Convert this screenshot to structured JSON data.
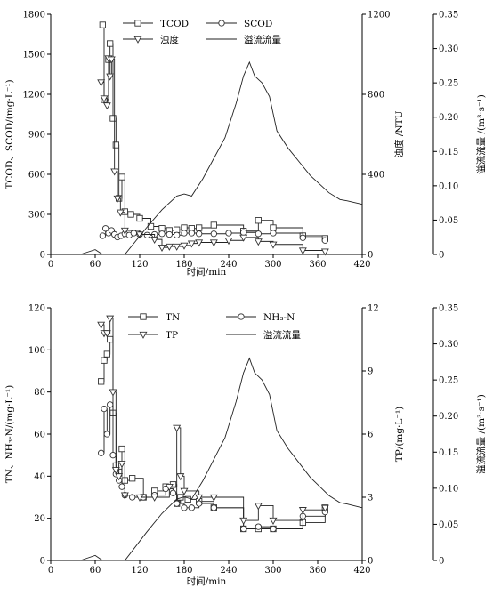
{
  "chart_data": [
    {
      "type": "line",
      "xlabel": "时间/min",
      "ylabel_left": "TCOD、SCOD/(mg·L⁻¹)",
      "ylabel_right1": "浊度 /NTU",
      "ylabel_right2": "溢流流量 /(m³·s⁻¹)",
      "xlim": [
        0,
        420
      ],
      "xticks": [
        "0",
        "60",
        "120",
        "180",
        "240",
        "300",
        "360",
        "420"
      ],
      "ylim_left": [
        0,
        1800
      ],
      "yticks_left": [
        "0",
        "300",
        "600",
        "900",
        "1200",
        "1500",
        "1800"
      ],
      "ylim_right1": [
        0,
        1200
      ],
      "yticks_right1": [
        "0",
        "400",
        "800",
        "1200"
      ],
      "ylim_right2": [
        0,
        0.35
      ],
      "yticks_right2": [
        "0",
        "0.05",
        "0.10",
        "0.15",
        "0.20",
        "0.25",
        "0.30",
        "0.35"
      ],
      "legend_position": "top",
      "series": [
        {
          "name": "TCOD",
          "axis": "left",
          "marker": "square",
          "style": "step",
          "x": [
            70,
            72,
            78,
            80,
            84,
            88,
            92,
            96,
            100,
            108,
            120,
            135,
            150,
            160,
            170,
            180,
            190,
            200,
            220,
            260,
            280,
            300,
            340,
            370
          ],
          "y": [
            1720,
            1160,
            1460,
            1580,
            1020,
            820,
            420,
            580,
            320,
            300,
            270,
            210,
            195,
            180,
            185,
            200,
            195,
            200,
            220,
            175,
            255,
            200,
            140,
            120
          ]
        },
        {
          "name": "SCOD",
          "axis": "left",
          "marker": "circle",
          "style": "step",
          "x": [
            70,
            74,
            78,
            82,
            86,
            90,
            95,
            100,
            106,
            112,
            120,
            130,
            140,
            150,
            160,
            170,
            180,
            190,
            200,
            220,
            240,
            260,
            280,
            300,
            340,
            370
          ],
          "y": [
            140,
            195,
            160,
            180,
            150,
            130,
            140,
            155,
            145,
            160,
            150,
            145,
            150,
            155,
            150,
            145,
            160,
            160,
            155,
            155,
            160,
            165,
            155,
            160,
            125,
            105
          ]
        },
        {
          "name": "浊度",
          "axis": "right1",
          "marker": "triangle-down",
          "style": "step",
          "x": [
            68,
            72,
            76,
            78,
            80,
            82,
            86,
            90,
            94,
            100,
            120,
            140,
            150,
            160,
            170,
            180,
            190,
            200,
            220,
            240,
            260,
            280,
            300,
            340,
            370
          ],
          "y": [
            860,
            780,
            745,
            980,
            890,
            975,
            415,
            280,
            210,
            120,
            100,
            75,
            35,
            40,
            40,
            45,
            55,
            60,
            60,
            70,
            85,
            65,
            50,
            20,
            15
          ]
        },
        {
          "name": "溢流流量",
          "axis": "right2",
          "marker": "none",
          "style": "line",
          "x": [
            40,
            60,
            70,
            100,
            130,
            150,
            170,
            180,
            190,
            205,
            220,
            235,
            250,
            260,
            268,
            275,
            285,
            295,
            305,
            320,
            335,
            350,
            365,
            375,
            390,
            400,
            420
          ],
          "y": [
            0,
            0.007,
            0,
            0,
            0.04,
            0.065,
            0.085,
            0.088,
            0.085,
            0.11,
            0.14,
            0.17,
            0.22,
            0.26,
            0.28,
            0.26,
            0.25,
            0.23,
            0.18,
            0.155,
            0.135,
            0.115,
            0.1,
            0.09,
            0.08,
            0.078,
            0.073
          ]
        }
      ]
    },
    {
      "type": "line",
      "xlabel": "时间/min",
      "ylabel_left": "TN、NH₃-N/(mg·L⁻¹)",
      "ylabel_right1": "TP/(mg·L⁻¹)",
      "ylabel_right2": "溢流流量 /(m³·s⁻¹)",
      "xlim": [
        0,
        420
      ],
      "xticks": [
        "0",
        "60",
        "120",
        "180",
        "240",
        "300",
        "360",
        "420"
      ],
      "ylim_left": [
        0,
        120
      ],
      "yticks_left": [
        "0",
        "20",
        "40",
        "60",
        "80",
        "100",
        "120"
      ],
      "ylim_right1": [
        0,
        12
      ],
      "yticks_right1": [
        "0",
        "3",
        "6",
        "9",
        "12"
      ],
      "ylim_right2": [
        0,
        0.35
      ],
      "yticks_right2": [
        "0",
        "0.05",
        "0.10",
        "0.15",
        "0.20",
        "0.25",
        "0.30",
        "0.35"
      ],
      "legend_position": "top",
      "series": [
        {
          "name": "TN",
          "axis": "left",
          "marker": "square",
          "style": "step",
          "x": [
            68,
            72,
            76,
            80,
            84,
            88,
            92,
            96,
            100,
            110,
            125,
            140,
            155,
            165,
            170,
            175,
            185,
            200,
            220,
            260,
            280,
            300,
            340,
            370
          ],
          "y": [
            85,
            95,
            98,
            105,
            70,
            45,
            42,
            53,
            38,
            39,
            30,
            33,
            35,
            36,
            27,
            30,
            29,
            28,
            25,
            15,
            15,
            15,
            18,
            25
          ]
        },
        {
          "name": "NH₃-N",
          "axis": "left",
          "marker": "circle",
          "style": "step",
          "x": [
            68,
            72,
            76,
            80,
            84,
            88,
            92,
            96,
            100,
            110,
            125,
            140,
            155,
            165,
            170,
            180,
            190,
            200,
            220,
            260,
            280,
            300,
            340,
            370
          ],
          "y": [
            51,
            72,
            60,
            74,
            50,
            41,
            38,
            35,
            31,
            30,
            30,
            31,
            34,
            32,
            27,
            25,
            25,
            27,
            25,
            15,
            16,
            15,
            21,
            23
          ]
        },
        {
          "name": "TP",
          "axis": "right1",
          "marker": "triangle-down",
          "style": "step",
          "x": [
            68,
            72,
            76,
            80,
            84,
            88,
            92,
            96,
            100,
            120,
            140,
            160,
            170,
            175,
            180,
            200,
            220,
            260,
            280,
            300,
            340,
            370
          ],
          "y": [
            11.2,
            10.8,
            10.8,
            11.5,
            8.0,
            4.3,
            4.0,
            4.6,
            3.1,
            3.0,
            3.0,
            3.5,
            6.3,
            4.0,
            3.3,
            3.0,
            3.0,
            1.9,
            2.6,
            1.9,
            2.4,
            2.5
          ]
        },
        {
          "name": "溢流流量",
          "axis": "right2",
          "marker": "none",
          "style": "line",
          "x": [
            40,
            60,
            70,
            100,
            130,
            150,
            170,
            180,
            190,
            205,
            220,
            235,
            250,
            260,
            268,
            275,
            285,
            295,
            305,
            320,
            335,
            350,
            365,
            375,
            390,
            400,
            420
          ],
          "y": [
            0,
            0.007,
            0,
            0,
            0.04,
            0.065,
            0.085,
            0.088,
            0.085,
            0.11,
            0.14,
            0.17,
            0.22,
            0.26,
            0.28,
            0.26,
            0.25,
            0.23,
            0.18,
            0.155,
            0.135,
            0.115,
            0.1,
            0.09,
            0.08,
            0.078,
            0.073
          ]
        }
      ]
    }
  ]
}
